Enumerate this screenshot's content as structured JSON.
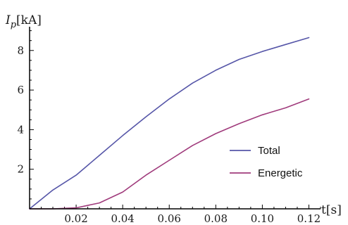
{
  "chart_data": {
    "type": "line",
    "ylabel_symbol": "I",
    "ylabel_subscript": "p",
    "ylabel_unit": "[kA]",
    "xlabel": "t[s]",
    "xlim": [
      0,
      0.125
    ],
    "ylim": [
      0,
      9.2
    ],
    "x_ticks_major": [
      0.02,
      0.04,
      0.06,
      0.08,
      0.1,
      0.12
    ],
    "x_tick_labels": [
      "0.02",
      "0.04",
      "0.06",
      "0.08",
      "0.10",
      "0.12"
    ],
    "y_ticks_major": [
      2,
      4,
      6,
      8
    ],
    "y_tick_labels": [
      "2",
      "4",
      "6",
      "8"
    ],
    "legend_position": "right",
    "series": [
      {
        "name": "Total",
        "color": "#5656a8",
        "x": [
          0,
          0.01,
          0.02,
          0.03,
          0.04,
          0.05,
          0.06,
          0.07,
          0.08,
          0.09,
          0.1,
          0.11,
          0.12
        ],
        "y": [
          0,
          0.95,
          1.7,
          2.7,
          3.7,
          4.65,
          5.55,
          6.35,
          7.0,
          7.55,
          7.95,
          8.3,
          8.65
        ]
      },
      {
        "name": "Energetic",
        "color": "#a03b7c",
        "x": [
          0,
          0.01,
          0.02,
          0.03,
          0.04,
          0.05,
          0.06,
          0.07,
          0.08,
          0.09,
          0.1,
          0.11,
          0.12
        ],
        "y": [
          0,
          0.0,
          0.05,
          0.3,
          0.85,
          1.7,
          2.45,
          3.2,
          3.8,
          4.3,
          4.75,
          5.1,
          5.55
        ]
      }
    ]
  }
}
